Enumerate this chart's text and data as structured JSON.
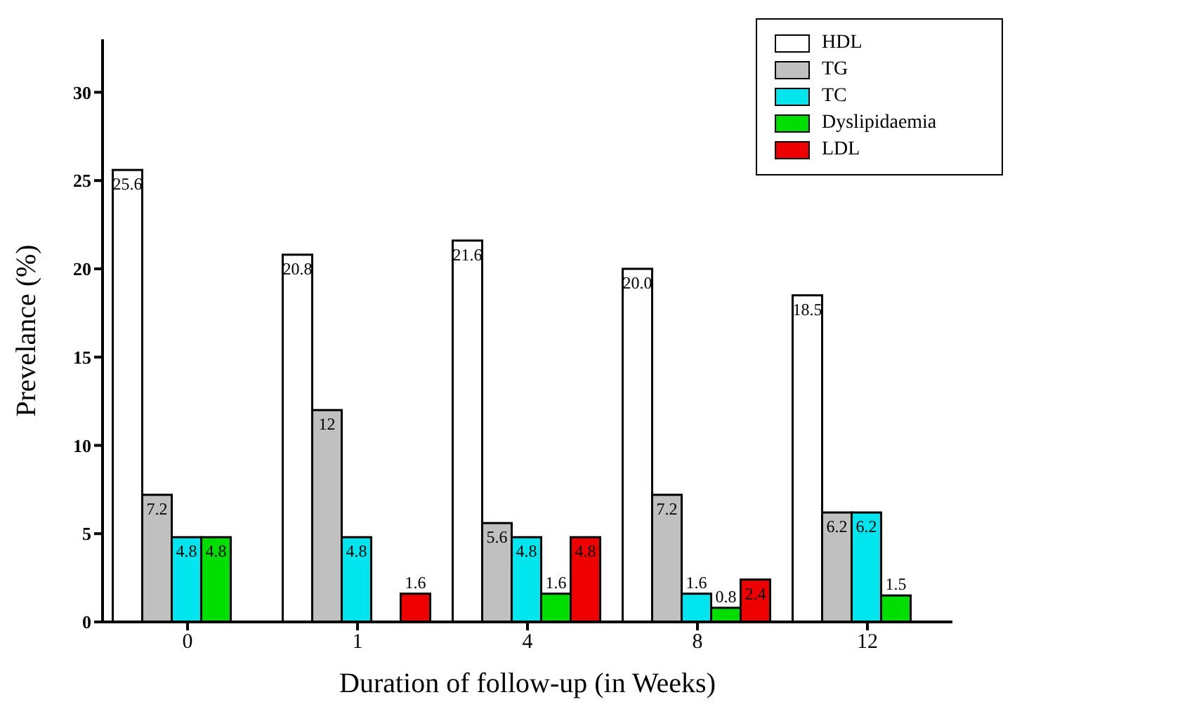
{
  "chart_data": {
    "type": "bar",
    "xlabel": "Duration of follow-up (in Weeks)",
    "ylabel": "Prevelance (%)",
    "categories": [
      "0",
      "1",
      "4",
      "8",
      "12"
    ],
    "series": [
      {
        "name": "HDL",
        "color": "#ffffff",
        "values": [
          25.6,
          20.8,
          21.6,
          20.0,
          18.5
        ],
        "value_labels": [
          "25.6",
          "20.8",
          "21.6",
          "20.0",
          "18.5"
        ]
      },
      {
        "name": "TG",
        "color": "#c0c0c0",
        "values": [
          7.2,
          12,
          5.6,
          7.2,
          6.2
        ],
        "value_labels": [
          "7.2",
          "12",
          "5.6",
          "7.2",
          "6.2"
        ]
      },
      {
        "name": "TC",
        "color": "#00e5ee",
        "values": [
          4.8,
          4.8,
          4.8,
          1.6,
          6.2
        ],
        "value_labels": [
          "4.8",
          "4.8",
          "4.8",
          "1.6",
          "6.2"
        ]
      },
      {
        "name": "Dyslipidaemia",
        "color": "#00dd00",
        "values": [
          4.8,
          null,
          1.6,
          0.8,
          1.5
        ],
        "value_labels": [
          "4.8",
          null,
          "1.6",
          "0.8",
          "1.5"
        ]
      },
      {
        "name": "LDL",
        "color": "#ee0000",
        "values": [
          null,
          1.6,
          4.8,
          2.4,
          null
        ],
        "value_labels": [
          null,
          "1.6",
          "4.8",
          "2.4",
          null
        ]
      }
    ],
    "ylim": [
      0,
      33
    ],
    "yticks": [
      0,
      5,
      10,
      15,
      20,
      25,
      30
    ],
    "grid": false,
    "legend": "top right"
  }
}
